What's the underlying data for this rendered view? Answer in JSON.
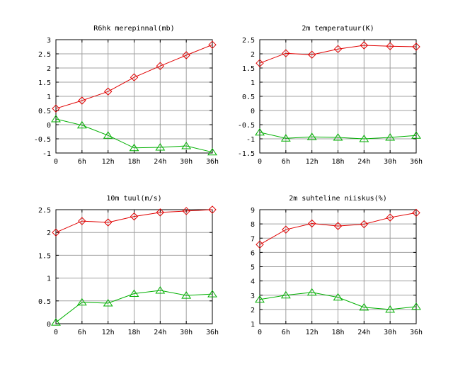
{
  "chart_data": [
    {
      "type": "line",
      "title": "R6hk merepinnal(mb)",
      "categories": [
        "0",
        "6h",
        "12h",
        "18h",
        "24h",
        "30h",
        "36h"
      ],
      "ylim": [
        -1,
        3
      ],
      "yticks": [
        "-1",
        "-0.5",
        "0",
        "0.5",
        "1",
        "1.5",
        "2",
        "2.5",
        "3"
      ],
      "grid": true,
      "series": [
        {
          "color": "#e00000",
          "marker": "diamond",
          "values": [
            0.57,
            0.85,
            1.17,
            1.67,
            2.07,
            2.45,
            2.82
          ]
        },
        {
          "color": "#00b000",
          "marker": "triangle",
          "values": [
            0.2,
            -0.02,
            -0.38,
            -0.82,
            -0.8,
            -0.75,
            -0.97
          ]
        }
      ]
    },
    {
      "type": "line",
      "title": "2m temperatuur(K)",
      "categories": [
        "0",
        "6h",
        "12h",
        "18h",
        "24h",
        "30h",
        "36h"
      ],
      "ylim": [
        -1.5,
        2.5
      ],
      "yticks": [
        "-1.5",
        "-1",
        "-0.5",
        "0",
        "0.5",
        "1",
        "1.5",
        "2",
        "2.5"
      ],
      "grid": true,
      "series": [
        {
          "color": "#e00000",
          "marker": "diamond",
          "values": [
            1.67,
            2.02,
            1.97,
            2.17,
            2.3,
            2.27,
            2.25
          ]
        },
        {
          "color": "#00b000",
          "marker": "triangle",
          "values": [
            -0.77,
            -0.98,
            -0.93,
            -0.95,
            -1.0,
            -0.95,
            -0.88
          ]
        }
      ]
    },
    {
      "type": "line",
      "title": "10m tuul(m/s)",
      "categories": [
        "0",
        "6h",
        "12h",
        "18h",
        "24h",
        "30h",
        "36h"
      ],
      "ylim": [
        0,
        2.5
      ],
      "yticks": [
        "0",
        "0.5",
        "1",
        "1.5",
        "2",
        "2.5"
      ],
      "grid": true,
      "series": [
        {
          "color": "#e00000",
          "marker": "diamond",
          "values": [
            2.0,
            2.25,
            2.22,
            2.35,
            2.44,
            2.47,
            2.5
          ]
        },
        {
          "color": "#00b000",
          "marker": "triangle",
          "values": [
            0.03,
            0.47,
            0.45,
            0.66,
            0.73,
            0.62,
            0.65
          ]
        }
      ]
    },
    {
      "type": "line",
      "title": "2m suhteline niiskus(%)",
      "categories": [
        "0",
        "6h",
        "12h",
        "18h",
        "24h",
        "30h",
        "36h"
      ],
      "ylim": [
        1,
        9
      ],
      "yticks": [
        "1",
        "2",
        "3",
        "4",
        "5",
        "6",
        "7",
        "8",
        "9"
      ],
      "grid": true,
      "series": [
        {
          "color": "#e00000",
          "marker": "diamond",
          "values": [
            6.55,
            7.6,
            8.03,
            7.85,
            7.98,
            8.45,
            8.78
          ]
        },
        {
          "color": "#00b000",
          "marker": "triangle",
          "values": [
            2.7,
            3.0,
            3.2,
            2.85,
            2.15,
            2.0,
            2.2
          ]
        }
      ]
    }
  ]
}
